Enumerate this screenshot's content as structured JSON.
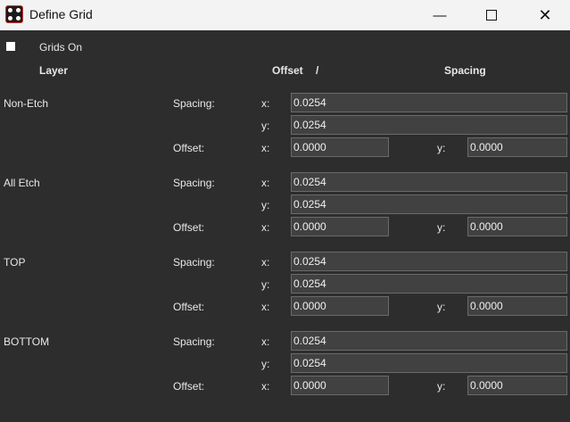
{
  "window": {
    "title": "Define Grid",
    "minimize_icon": "minimize-icon",
    "maximize_icon": "maximize-icon",
    "close_icon": "close-icon"
  },
  "grids_on": {
    "label": "Grids On",
    "checked": false
  },
  "headers": {
    "layer": "Layer",
    "offset": "Offset",
    "slash": "/",
    "spacing": "Spacing"
  },
  "labels": {
    "spacing": "Spacing:",
    "offset": "Offset:",
    "x": "x:",
    "y": "y:"
  },
  "layers": [
    {
      "name": "Non-Etch",
      "spacing_x": "0.0254",
      "spacing_y": "0.0254",
      "offset_x": "0.0000",
      "offset_y": "0.0000"
    },
    {
      "name": "All Etch",
      "spacing_x": "0.0254",
      "spacing_y": "0.0254",
      "offset_x": "0.0000",
      "offset_y": "0.0000"
    },
    {
      "name": "TOP",
      "spacing_x": "0.0254",
      "spacing_y": "0.0254",
      "offset_x": "0.0000",
      "offset_y": "0.0000"
    },
    {
      "name": "BOTTOM",
      "spacing_x": "0.0254",
      "spacing_y": "0.0254",
      "offset_x": "0.0000",
      "offset_y": "0.0000"
    }
  ]
}
